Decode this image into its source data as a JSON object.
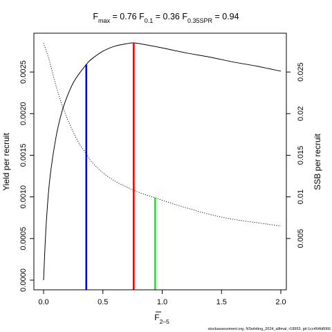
{
  "chart_data": {
    "type": "line",
    "title": {
      "fmax_label": "max",
      "fmax_value": "0.76",
      "f01_label": "0.1",
      "f01_value": "0.36",
      "fspr_label": "0.35SPR",
      "fspr_value": "0.94"
    },
    "xlabel": "F",
    "xlabel_sub": "2–5",
    "ylabel_left": "Yield per recruit",
    "ylabel_right": "SSB per recruit",
    "xlim": [
      0,
      2.0
    ],
    "ylim_left": [
      0,
      0.00285
    ],
    "ylim_right": [
      0,
      0.0285
    ],
    "x_ticks": [
      {
        "v": 0,
        "label": "0.0"
      },
      {
        "v": 0.5,
        "label": "0.5"
      },
      {
        "v": 1.0,
        "label": "1.0"
      },
      {
        "v": 1.5,
        "label": "1.5"
      },
      {
        "v": 2.0,
        "label": "2.0"
      }
    ],
    "y_left_ticks": [
      {
        "v": 0,
        "label": "0.0000"
      },
      {
        "v": 0.0005,
        "label": "0.0005"
      },
      {
        "v": 0.001,
        "label": "0.0010"
      },
      {
        "v": 0.0015,
        "label": "0.0015"
      },
      {
        "v": 0.002,
        "label": "0.0020"
      },
      {
        "v": 0.0025,
        "label": "0.0025"
      }
    ],
    "y_right_ticks": [
      {
        "v": 0.005,
        "label": "0.005"
      },
      {
        "v": 0.01,
        "label": "0.01"
      },
      {
        "v": 0.015,
        "label": "0.015"
      },
      {
        "v": 0.02,
        "label": "0.02"
      },
      {
        "v": 0.025,
        "label": "0.025"
      }
    ],
    "series": [
      {
        "axis": "left",
        "style": "solid",
        "color": "#000000",
        "x": [
          0,
          0.02,
          0.05,
          0.1,
          0.15,
          0.2,
          0.25,
          0.3,
          0.36,
          0.4,
          0.5,
          0.6,
          0.7,
          0.76,
          0.85,
          1.0,
          1.2,
          1.4,
          1.6,
          1.8,
          2.0
        ],
        "y": [
          0,
          0.00062,
          0.00118,
          0.00168,
          0.002,
          0.00221,
          0.00237,
          0.00248,
          0.00259,
          0.00265,
          0.00275,
          0.00281,
          0.00284,
          0.00285,
          0.00283,
          0.00279,
          0.00273,
          0.00268,
          0.00262,
          0.00257,
          0.00251
        ]
      },
      {
        "axis": "right",
        "style": "dotted",
        "color": "#000000",
        "x": [
          0,
          0.05,
          0.1,
          0.15,
          0.2,
          0.25,
          0.3,
          0.36,
          0.4,
          0.5,
          0.6,
          0.7,
          0.76,
          0.85,
          0.94,
          1.0,
          1.2,
          1.4,
          1.6,
          1.8,
          2.0
        ],
        "y": [
          0.0285,
          0.0263,
          0.0236,
          0.0213,
          0.0194,
          0.0178,
          0.0164,
          0.0152,
          0.0143,
          0.0129,
          0.0119,
          0.0112,
          0.0108,
          0.0103,
          0.0099,
          0.0096,
          0.0087,
          0.0079,
          0.0073,
          0.0069,
          0.0065
        ]
      }
    ],
    "reference_lines": [
      {
        "name": "F0.1",
        "x": 0.36,
        "y": 0.00259,
        "axis": "left",
        "color": "#0000ff"
      },
      {
        "name": "Fmax",
        "x": 0.76,
        "y": 0.00285,
        "axis": "left",
        "color": "#ff0000"
      },
      {
        "name": "F0.35SPR",
        "x": 0.94,
        "y": 0.0099,
        "axis": "right",
        "color": "#00ff00"
      }
    ],
    "footer": "stockassessment.org, NSwhiting_2024_alltmal, r18953, git:1cc464b8066"
  }
}
